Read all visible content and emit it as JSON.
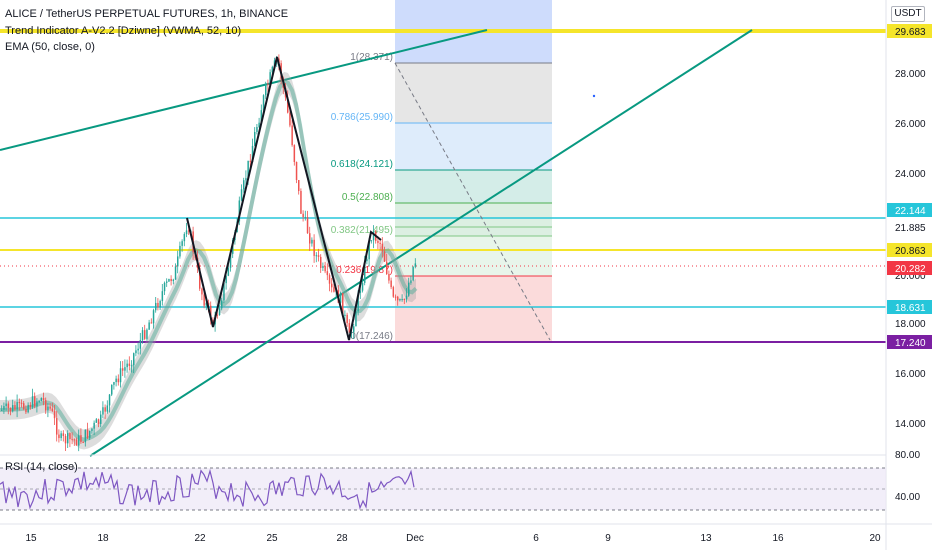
{
  "header": {
    "title": "ALICE / TetherUS PERPETUAL FUTURES, 1h, BINANCE",
    "indicator1": "Trend Indicator A-V2.2 [Dziwne] (VWMA, 52, 10)",
    "indicator2": "EMA (50, close, 0)",
    "currency": "USDT"
  },
  "rsi": {
    "label": "RSI (14, close)",
    "ticks": [
      "80.00",
      "40.00"
    ]
  },
  "price_axis": {
    "ticks": [
      "28.000",
      "26.000",
      "24.000",
      "21.885",
      "18.000",
      "16.000",
      "14.000"
    ],
    "badges": [
      {
        "text": "29.683",
        "bg": "#f5e52b",
        "fg": "#131722"
      },
      {
        "text": "22.144",
        "bg": "#26c6da",
        "fg": "#ffffff"
      },
      {
        "text": "20.863",
        "bg": "#f5e52b",
        "fg": "#131722"
      },
      {
        "text": "20.282",
        "bg": "#f23645",
        "fg": "#ffffff"
      },
      {
        "text": "18.631",
        "bg": "#26c6da",
        "fg": "#ffffff"
      },
      {
        "text": "17.240",
        "bg": "#7b1fa2",
        "fg": "#ffffff"
      }
    ],
    "partial_tick": "20.000"
  },
  "time_axis": {
    "labels": [
      "15",
      "18",
      "22",
      "25",
      "28",
      "Dec",
      "6",
      "9",
      "13",
      "16",
      "20"
    ]
  },
  "fib": {
    "levels": [
      {
        "text": "1(28.371)",
        "color": "#787b86"
      },
      {
        "text": "0.786(25.990)",
        "color": "#64b5f6"
      },
      {
        "text": "0.618(24.121)",
        "color": "#089981"
      },
      {
        "text": "0.5(22.808)",
        "color": "#4caf50"
      },
      {
        "text": "0.382(21.495)",
        "color": "#81c784"
      },
      {
        "text": "0.236(19.87)",
        "color": "#f23645"
      },
      {
        "text": "0(17.246)",
        "color": "#787b86"
      }
    ]
  },
  "colors": {
    "yellow": "#f5e52b",
    "cyan": "#26c6da",
    "purple": "#7b1fa2",
    "teal": "#089981",
    "up": "#26a69a",
    "down": "#ef5350"
  }
}
